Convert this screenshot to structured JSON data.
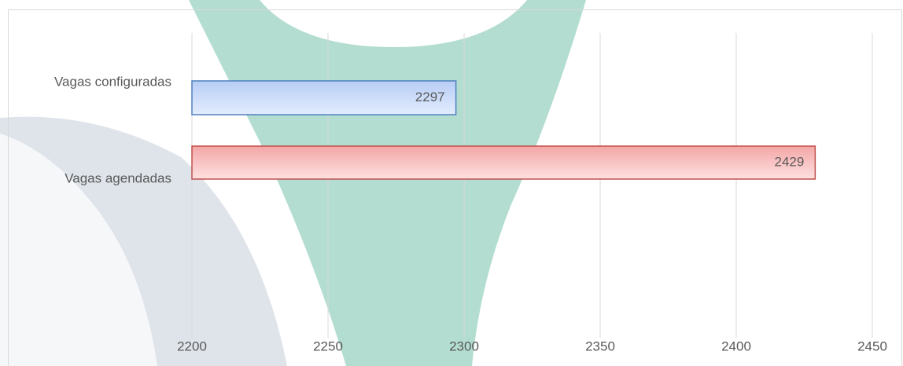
{
  "chart_data": {
    "type": "bar",
    "orientation": "horizontal",
    "categories": [
      "Vagas configuradas",
      "Vagas agendadas"
    ],
    "values": [
      2297,
      2429
    ],
    "colors": [
      "#4f81bd",
      "#c0504d"
    ],
    "xlim": [
      2200,
      2450
    ],
    "xticks": [
      2200,
      2250,
      2300,
      2350,
      2400,
      2450
    ],
    "grid": true
  }
}
